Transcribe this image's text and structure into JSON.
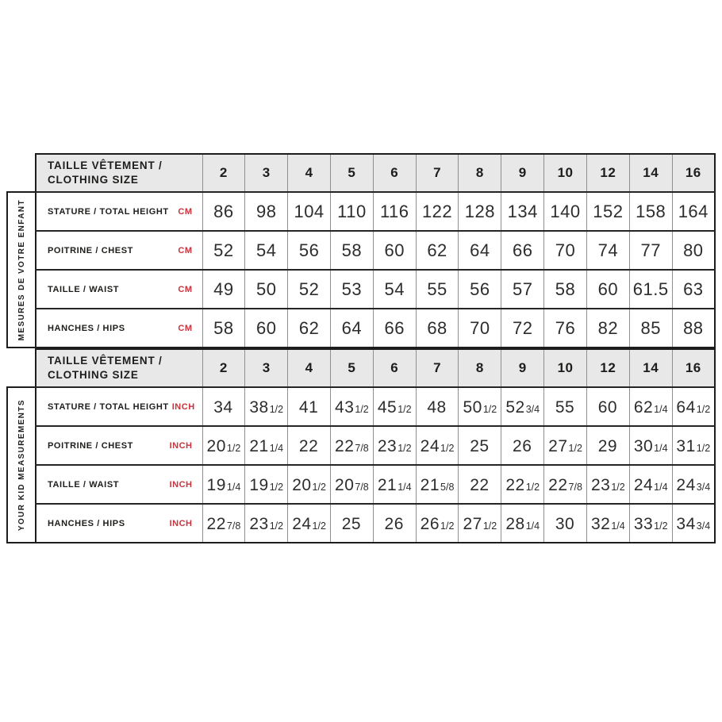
{
  "colors": {
    "accent_red": "#c8333d",
    "header_bg": "#e8e8e8",
    "border_dark": "#1d1d1b",
    "grid_grey": "#8f8f8f",
    "number_text": "#2d2d2d"
  },
  "chart_data": {
    "type": "table",
    "title": "Kids clothing size chart (cm and inches)",
    "header": {
      "line1": "TAILLE VÊTEMENT /",
      "line2": "CLOTHING SIZE"
    },
    "columns": [
      "2",
      "3",
      "4",
      "5",
      "6",
      "7",
      "8",
      "9",
      "10",
      "12",
      "14",
      "16"
    ],
    "sections": [
      {
        "side_label": "MESURES DE VOTRE ENFANT",
        "unit": "CM",
        "rows": [
          {
            "label": "STATURE / TOTAL HEIGHT",
            "values": [
              "86",
              "98",
              "104",
              "110",
              "116",
              "122",
              "128",
              "134",
              "140",
              "152",
              "158",
              "164"
            ]
          },
          {
            "label": "POITRINE / CHEST",
            "values": [
              "52",
              "54",
              "56",
              "58",
              "60",
              "62",
              "64",
              "66",
              "70",
              "74",
              "77",
              "80"
            ]
          },
          {
            "label": "TAILLE / WAIST",
            "values": [
              "49",
              "50",
              "52",
              "53",
              "54",
              "55",
              "56",
              "57",
              "58",
              "60",
              "61.5",
              "63"
            ]
          },
          {
            "label": "HANCHES / HIPS",
            "values": [
              "58",
              "60",
              "62",
              "64",
              "66",
              "68",
              "70",
              "72",
              "76",
              "82",
              "85",
              "88"
            ]
          }
        ]
      },
      {
        "side_label": "YOUR KID MEASUREMENTS",
        "unit": "INCH",
        "rows": [
          {
            "label": "STATURE / TOTAL HEIGHT",
            "values": [
              [
                "34",
                ""
              ],
              [
                "38",
                "1/2"
              ],
              [
                "41",
                ""
              ],
              [
                "43",
                "1/2"
              ],
              [
                "45",
                "1/2"
              ],
              [
                "48",
                ""
              ],
              [
                "50",
                "1/2"
              ],
              [
                "52",
                "3/4"
              ],
              [
                "55",
                ""
              ],
              [
                "60",
                ""
              ],
              [
                "62",
                "1/4"
              ],
              [
                "64",
                "1/2"
              ]
            ]
          },
          {
            "label": "POITRINE / CHEST",
            "values": [
              [
                "20",
                "1/2"
              ],
              [
                "21",
                "1/4"
              ],
              [
                "22",
                ""
              ],
              [
                "22",
                "7/8"
              ],
              [
                "23",
                "1/2"
              ],
              [
                "24",
                "1/2"
              ],
              [
                "25",
                ""
              ],
              [
                "26",
                ""
              ],
              [
                "27",
                "1/2"
              ],
              [
                "29",
                ""
              ],
              [
                "30",
                "1/4"
              ],
              [
                "31",
                "1/2"
              ]
            ]
          },
          {
            "label": "TAILLE / WAIST",
            "values": [
              [
                "19",
                "1/4"
              ],
              [
                "19",
                "1/2"
              ],
              [
                "20",
                "1/2"
              ],
              [
                "20",
                "7/8"
              ],
              [
                "21",
                "1/4"
              ],
              [
                "21",
                "5/8"
              ],
              [
                "22",
                ""
              ],
              [
                "22",
                "1/2"
              ],
              [
                "22",
                "7/8"
              ],
              [
                "23",
                "1/2"
              ],
              [
                "24",
                "1/4"
              ],
              [
                "24",
                "3/4"
              ]
            ]
          },
          {
            "label": "HANCHES / HIPS",
            "values": [
              [
                "22",
                "7/8"
              ],
              [
                "23",
                "1/2"
              ],
              [
                "24",
                "1/2"
              ],
              [
                "25",
                ""
              ],
              [
                "26",
                ""
              ],
              [
                "26",
                "1/2"
              ],
              [
                "27",
                "1/2"
              ],
              [
                "28",
                "1/4"
              ],
              [
                "30",
                ""
              ],
              [
                "32",
                "1/4"
              ],
              [
                "33",
                "1/2"
              ],
              [
                "34",
                "3/4"
              ]
            ]
          }
        ]
      }
    ]
  }
}
